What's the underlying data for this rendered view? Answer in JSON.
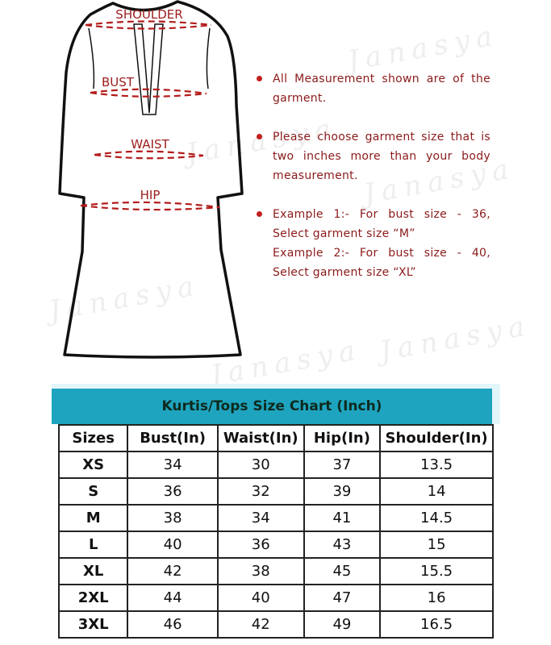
{
  "watermark": "Janasya",
  "garment": {
    "labels": {
      "shoulder": "SHOULDER",
      "bust": "BUST",
      "waist": "WAIST",
      "hip": "HIP"
    },
    "measure_line_color": "#b31b1b"
  },
  "notes": [
    {
      "lines": [
        "All Measurement shown are of the garment."
      ]
    },
    {
      "lines": [
        "Please choose garment size that is two inches more than your body measurement."
      ]
    },
    {
      "lines": [
        "Example 1:- For bust size - 36, Select garment size “M”",
        "Example 2:- For bust size - 40, Select garment size  “XL”"
      ]
    }
  ],
  "size_chart": {
    "title": "Kurtis/Tops Size Chart (Inch)",
    "title_band_color": "#1ea4bf",
    "headers": [
      "Sizes",
      "Bust(In)",
      "Waist(In)",
      "Hip(In)",
      "Shoulder(In)"
    ],
    "rows": [
      [
        "XS",
        "34",
        "30",
        "37",
        "13.5"
      ],
      [
        "S",
        "36",
        "32",
        "39",
        "14"
      ],
      [
        "M",
        "38",
        "34",
        "41",
        "14.5"
      ],
      [
        "L",
        "40",
        "36",
        "43",
        "15"
      ],
      [
        "XL",
        "42",
        "38",
        "45",
        "15.5"
      ],
      [
        "2XL",
        "44",
        "40",
        "47",
        "16"
      ],
      [
        "3XL",
        "46",
        "42",
        "49",
        "16.5"
      ]
    ]
  }
}
